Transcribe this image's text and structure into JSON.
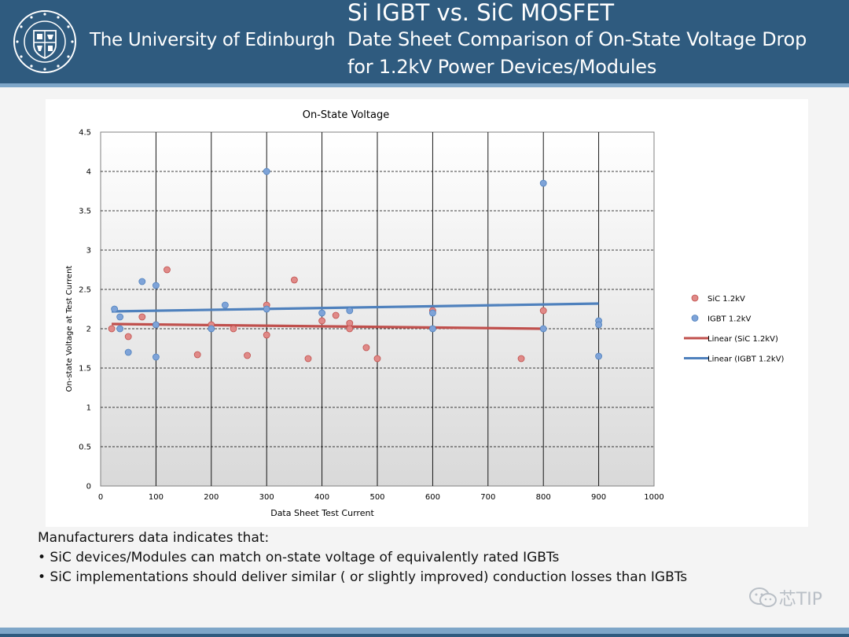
{
  "header": {
    "university_name": "The University of Edinburgh",
    "title": "Si IGBT vs. SiC MOSFET",
    "subtitle_line1": "Date Sheet Comparison of On-State Voltage Drop",
    "subtitle_line2": "for  1.2kV Power Devices/Modules",
    "header_color": "#2f5b7f",
    "stripe_color": "#7ea6c8"
  },
  "notes": {
    "intro": "Manufacturers data indicates that:",
    "bullets": [
      "• SiC devices/Modules can match on-state voltage of equivalently rated IGBTs",
      "• SiC implementations should deliver similar ( or slightly improved) conduction losses than IGBTs"
    ]
  },
  "watermark": {
    "text": "芯TIP",
    "icon": "wechat-icon"
  },
  "chart_data": {
    "type": "scatter",
    "title": "On-State Voltage",
    "xlabel": "Data Sheet Test Current",
    "ylabel": "On-state Voltage at Test Current",
    "xlim": [
      0,
      1000
    ],
    "ylim": [
      0,
      4.5
    ],
    "xticks": [
      0,
      100,
      200,
      300,
      400,
      500,
      600,
      700,
      800,
      900,
      1000
    ],
    "yticks": [
      0,
      0.5,
      1,
      1.5,
      2,
      2.5,
      3,
      3.5,
      4,
      4.5
    ],
    "x_grid": "solid vertical",
    "y_grid": "dashed horizontal",
    "legend_position": "right",
    "series": [
      {
        "name": "SiC 1.2kV",
        "marker": "circle",
        "color": "#e08a88",
        "points": [
          [
            20,
            2.0
          ],
          [
            50,
            1.9
          ],
          [
            75,
            2.15
          ],
          [
            100,
            2.05
          ],
          [
            120,
            2.75
          ],
          [
            175,
            1.67
          ],
          [
            200,
            2.05
          ],
          [
            240,
            2.0
          ],
          [
            265,
            1.66
          ],
          [
            300,
            2.3
          ],
          [
            300,
            1.92
          ],
          [
            350,
            2.62
          ],
          [
            375,
            1.62
          ],
          [
            400,
            2.1
          ],
          [
            425,
            2.17
          ],
          [
            450,
            2.07
          ],
          [
            450,
            2.0
          ],
          [
            480,
            1.76
          ],
          [
            500,
            1.62
          ],
          [
            600,
            2.23
          ],
          [
            760,
            1.62
          ],
          [
            800,
            2.23
          ]
        ]
      },
      {
        "name": "IGBT 1.2kV",
        "marker": "circle",
        "color": "#7ea3d8",
        "points": [
          [
            25,
            2.25
          ],
          [
            35,
            2.15
          ],
          [
            35,
            2.0
          ],
          [
            50,
            1.7
          ],
          [
            75,
            2.6
          ],
          [
            100,
            2.55
          ],
          [
            100,
            2.05
          ],
          [
            100,
            1.64
          ],
          [
            200,
            2.0
          ],
          [
            225,
            2.3
          ],
          [
            300,
            4.0
          ],
          [
            300,
            2.25
          ],
          [
            400,
            2.2
          ],
          [
            450,
            2.23
          ],
          [
            600,
            2.2
          ],
          [
            600,
            2.0
          ],
          [
            800,
            3.85
          ],
          [
            800,
            2.0
          ],
          [
            900,
            2.1
          ],
          [
            900,
            2.05
          ],
          [
            900,
            1.65
          ]
        ]
      }
    ],
    "trendlines": [
      {
        "name": "Linear (SiC 1.2kV)",
        "color": "#c0504d",
        "x": [
          20,
          800
        ],
        "y": [
          2.06,
          2.0
        ]
      },
      {
        "name": "Linear (IGBT 1.2kV)",
        "color": "#4f81bd",
        "x": [
          20,
          900
        ],
        "y": [
          2.22,
          2.32
        ]
      }
    ]
  }
}
